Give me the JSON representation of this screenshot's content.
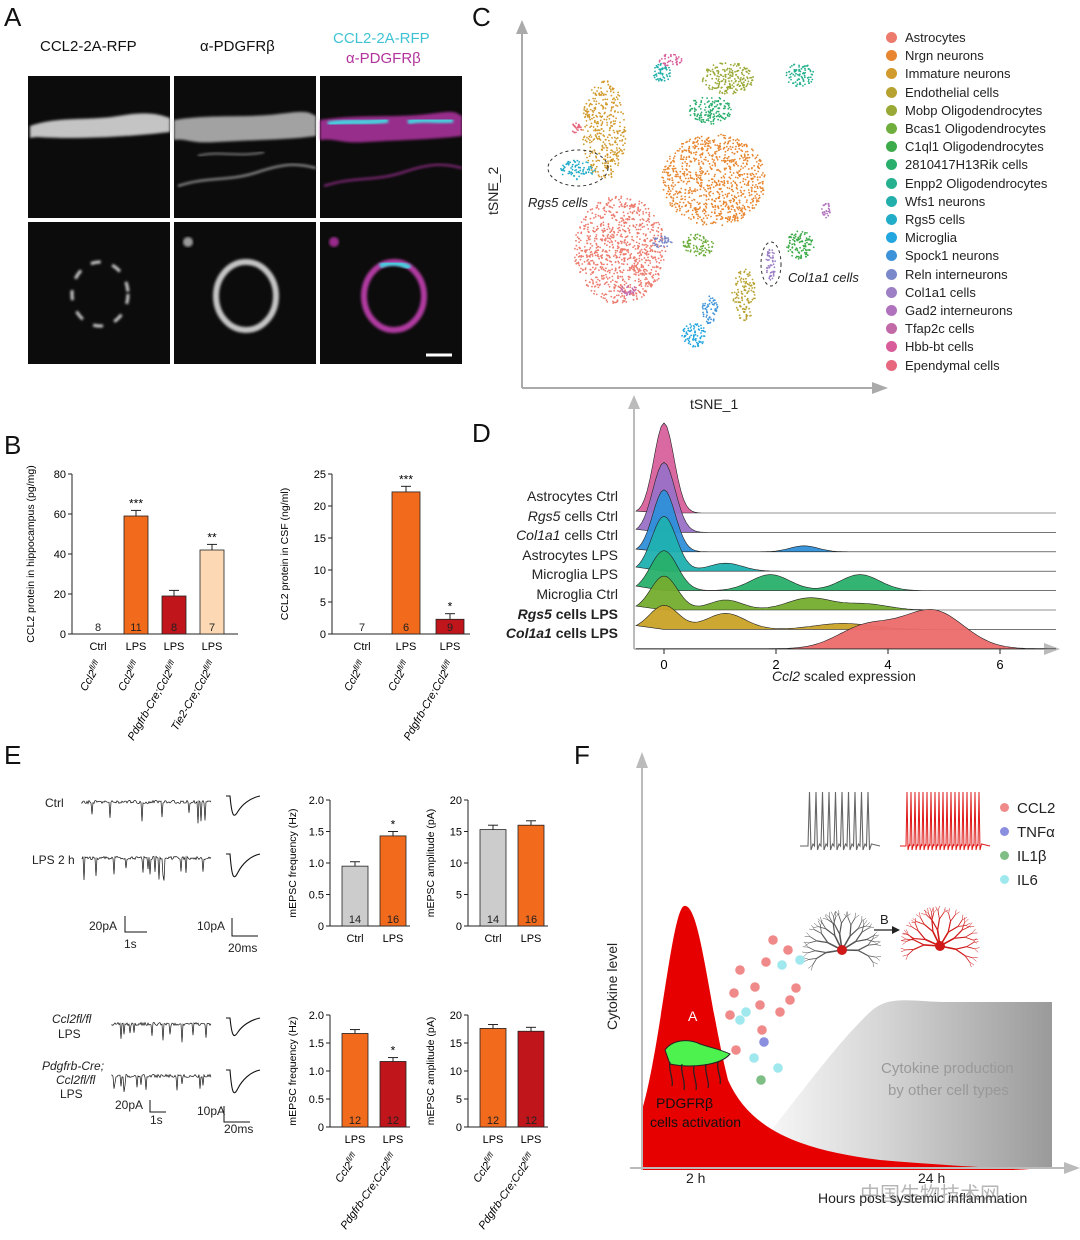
{
  "panelA": {
    "label": "A",
    "col1": "CCL2-2A-RFP",
    "col2": "α-PDGFRβ",
    "col3a": "CCL2-2A-RFP",
    "col3b": "α-PDGFRβ"
  },
  "panelB": {
    "label": "B",
    "chart_data": [
      {
        "type": "bar",
        "ylabel": "CCL2 protein in hippocampus (pg/mg)",
        "ylim": [
          0,
          80
        ],
        "yticks": [
          "0",
          "20",
          "40",
          "60",
          "80"
        ],
        "categories": [
          "Ctrl",
          "LPS",
          "LPS",
          "LPS"
        ],
        "genotypes": [
          "Ccl2fl/fl",
          "Ccl2fl/fl",
          "Pdgfrb-Cre;Ccl2fl/fl",
          "Tie2-Cre;Ccl2fl/fl"
        ],
        "values": [
          0,
          59,
          19,
          42
        ],
        "n": [
          "8",
          "11",
          "8",
          "7"
        ],
        "sig": [
          "",
          "***",
          "",
          "**"
        ],
        "colors": [
          "#cccccc",
          "#f26a1b",
          "#c0151b",
          "#fcd9b4"
        ]
      },
      {
        "type": "bar",
        "ylabel": "CCL2 protein in CSF (ng/ml)",
        "ylim": [
          0,
          25
        ],
        "yticks": [
          "0",
          "5",
          "10",
          "15",
          "20",
          "25"
        ],
        "categories": [
          "Ctrl",
          "LPS",
          "LPS"
        ],
        "genotypes": [
          "Ccl2fl/fl",
          "Ccl2fl/fl",
          "Pdgfrb-Cre;Ccl2fl/fl"
        ],
        "values": [
          0,
          22.2,
          2.3
        ],
        "n": [
          "7",
          "6",
          "9"
        ],
        "sig": [
          "",
          "***",
          "*"
        ],
        "colors": [
          "#cccccc",
          "#f26a1b",
          "#c0151b"
        ]
      }
    ]
  },
  "panelC": {
    "label": "C",
    "xaxis": "tSNE_1",
    "yaxis": "tSNE_2",
    "annot_rgs5": "Rgs5 cells",
    "annot_col1a1": "Col1a1 cells",
    "legend": [
      {
        "name": "Astrocytes",
        "color": "#ec7a6d"
      },
      {
        "name": "Nrgn neurons",
        "color": "#e7862f"
      },
      {
        "name": "Immature neurons",
        "color": "#d19a2c"
      },
      {
        "name": "Endothelial cells",
        "color": "#b7a231"
      },
      {
        "name": "Mobp Oligodendrocytes",
        "color": "#9aa935"
      },
      {
        "name": "Bcas1 Oligodendrocytes",
        "color": "#6fae3d"
      },
      {
        "name": "C1ql1 Oligodendrocytes",
        "color": "#3dab4a"
      },
      {
        "name": "2810417H13Rik cells",
        "color": "#2aae6c"
      },
      {
        "name": "Enpp2 Oligodendrocytes",
        "color": "#26b08f"
      },
      {
        "name": "Wfs1 neurons",
        "color": "#22aeaa"
      },
      {
        "name": "Rgs5 cells",
        "color": "#21acc7"
      },
      {
        "name": "Microglia",
        "color": "#22a6df"
      },
      {
        "name": "Spock1 neurons",
        "color": "#3d93d9"
      },
      {
        "name": "Reln interneurons",
        "color": "#7b88c9"
      },
      {
        "name": "Col1a1 cells",
        "color": "#9c7fc5"
      },
      {
        "name": "Gad2 interneurons",
        "color": "#b072bd"
      },
      {
        "name": "Tfap2c cells",
        "color": "#c269a8"
      },
      {
        "name": "Hbb-bt cells",
        "color": "#d85c9a"
      },
      {
        "name": "Ependymal cells",
        "color": "#e6677e"
      }
    ]
  },
  "panelD": {
    "label": "D",
    "xlabel_italic": "Ccl2",
    "xlabel_rest": "scaled expression",
    "xticks": [
      "0",
      "2",
      "4",
      "6"
    ],
    "rows": [
      {
        "name": "Astrocytes Ctrl",
        "color": "#d8619c"
      },
      {
        "name": "Rgs5 cells Ctrl",
        "color": "#9a71c7"
      },
      {
        "name": "Col1a1 cells Ctrl",
        "color": "#2f8fd9"
      },
      {
        "name": "Astrocytes LPS",
        "color": "#1fb0b0"
      },
      {
        "name": "Microglia LPS",
        "color": "#28b06a"
      },
      {
        "name": "Microglia Ctrl",
        "color": "#74ad2e"
      },
      {
        "name": "Rgs5 cells LPS",
        "color": "#c9a227"
      },
      {
        "name": "Col1a1 cells LPS",
        "color": "#ec6c6c"
      }
    ]
  },
  "panelE": {
    "label": "E",
    "trace_ctrl": "Ctrl",
    "trace_lps": "LPS 2 h",
    "scale_pa20": "20pA",
    "scale_1s": "1s",
    "scale_pa10": "10pA",
    "scale_20ms": "20ms",
    "trace_flfl": "Ccl2fl/fl",
    "trace_flfl_lps": "LPS",
    "trace_cre1": "Pdgfrb-Cre;",
    "trace_cre2": "Ccl2fl/fl",
    "trace_cre_lps": "LPS",
    "chart_data": [
      {
        "type": "bar",
        "ylabel": "mEPSC frequency (Hz)",
        "ylim": [
          0,
          2.0
        ],
        "yticks": [
          "0",
          "0.5",
          "1.0",
          "1.5",
          "2.0"
        ],
        "categories": [
          "Ctrl",
          "LPS"
        ],
        "values": [
          0.95,
          1.43
        ],
        "n": [
          "14",
          "16"
        ],
        "sig": [
          "",
          "*"
        ],
        "colors": [
          "#cccccc",
          "#f26a1b"
        ]
      },
      {
        "type": "bar",
        "ylabel": "mEPSC amplitude (pA)",
        "ylim": [
          0,
          20
        ],
        "yticks": [
          "0",
          "5",
          "10",
          "15",
          "20"
        ],
        "categories": [
          "Ctrl",
          "LPS"
        ],
        "values": [
          15.3,
          16.0
        ],
        "n": [
          "14",
          "16"
        ],
        "sig": [
          "",
          ""
        ],
        "colors": [
          "#cccccc",
          "#f26a1b"
        ]
      },
      {
        "type": "bar",
        "ylabel": "mEPSC frequency (Hz)",
        "ylim": [
          0,
          2.0
        ],
        "yticks": [
          "0",
          "0.5",
          "1.0",
          "1.5",
          "2.0"
        ],
        "categories": [
          "LPS",
          "LPS"
        ],
        "genotypes": [
          "Ccl2fl/fl",
          "Pdgfrb-Cre;Ccl2fl/fl"
        ],
        "values": [
          1.67,
          1.17
        ],
        "n": [
          "12",
          "12"
        ],
        "sig": [
          "",
          "*"
        ],
        "colors": [
          "#f26a1b",
          "#c0151b"
        ]
      },
      {
        "type": "bar",
        "ylabel": "mEPSC amplitude (pA)",
        "ylim": [
          0,
          20
        ],
        "yticks": [
          "0",
          "5",
          "10",
          "15",
          "20"
        ],
        "categories": [
          "LPS",
          "LPS"
        ],
        "genotypes": [
          "Ccl2fl/fl",
          "Pdgfrb-Cre;Ccl2fl/fl"
        ],
        "values": [
          17.6,
          17.1
        ],
        "n": [
          "12",
          "12"
        ],
        "sig": [
          "",
          ""
        ],
        "colors": [
          "#f26a1b",
          "#c0151b"
        ]
      }
    ]
  },
  "panelF": {
    "label": "F",
    "ylabel": "Cytokine level",
    "legend": [
      {
        "name": "CCL2",
        "color": "#f08a8a"
      },
      {
        "name": "TNFα",
        "color": "#8b8fe0"
      },
      {
        "name": "IL1β",
        "color": "#7fbf86"
      },
      {
        "name": "IL6",
        "color": "#9ee8ee"
      }
    ],
    "label_A": "A",
    "label_B": "B",
    "cells1": "PDGFRβ",
    "cells2": "cells activation",
    "other1": "Cytokine production",
    "other2": "by other cell types",
    "t2h": "2 h",
    "t24h": "24 h",
    "xaxis": "Hours post systemic inflammation",
    "watermark": "中国生物技术网"
  }
}
